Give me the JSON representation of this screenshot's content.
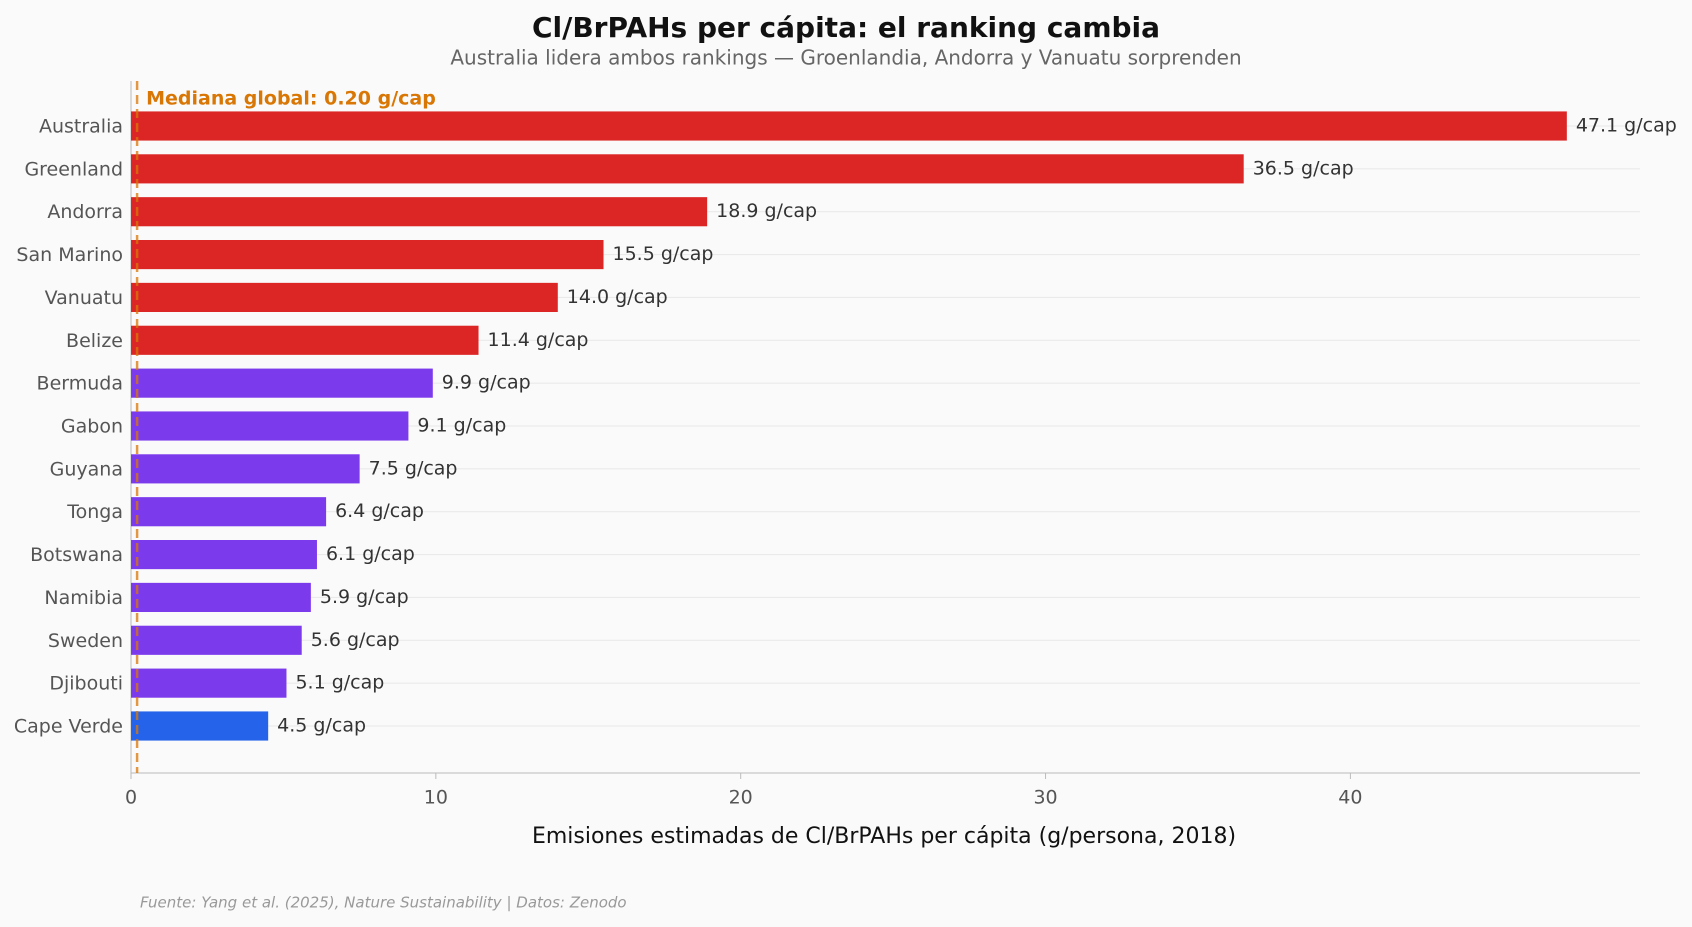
{
  "chart_data": {
    "type": "barh",
    "title": "Cl/BrPAHs per cápita: el ranking cambia",
    "subtitle": "Australia lidera ambos rankings — Groenlandia, Andorra y Vanuatu sorprenden",
    "x_label": "Emisiones estimadas de Cl/BrPAHs per cápita (g/persona, 2018)",
    "source": "Fuente: Yang et al. (2025), Nature Sustainability | Datos: Zenodo",
    "categories": [
      "Australia",
      "Greenland",
      "Andorra",
      "San Marino",
      "Vanuatu",
      "Belize",
      "Bermuda",
      "Gabon",
      "Guyana",
      "Tonga",
      "Botswana",
      "Namibia",
      "Sweden",
      "Djibouti",
      "Cape Verde"
    ],
    "values": [
      47.1,
      36.5,
      18.9,
      15.5,
      14.0,
      11.4,
      9.9,
      9.1,
      7.5,
      6.4,
      6.1,
      5.9,
      5.6,
      5.1,
      4.5
    ],
    "value_labels": [
      "47.1 g/cap",
      "36.5 g/cap",
      "18.9 g/cap",
      "15.5 g/cap",
      "14.0 g/cap",
      "11.4 g/cap",
      "9.9 g/cap",
      "9.1 g/cap",
      "7.5 g/cap",
      "6.4 g/cap",
      "6.1 g/cap",
      "5.9 g/cap",
      "5.6 g/cap",
      "5.1 g/cap",
      "4.5 g/cap"
    ],
    "colors": [
      "#dc2626",
      "#dc2626",
      "#dc2626",
      "#dc2626",
      "#dc2626",
      "#dc2626",
      "#7c3aed",
      "#7c3aed",
      "#7c3aed",
      "#7c3aed",
      "#7c3aed",
      "#7c3aed",
      "#7c3aed",
      "#7c3aed",
      "#2563eb"
    ],
    "reference_line": {
      "value": 0.2,
      "label": "Mediana global: 0.20 g/cap",
      "color": "#d97706"
    },
    "xlim": [
      0,
      49.5
    ],
    "xticks": [
      0,
      10,
      20,
      30,
      40
    ],
    "grid": true
  }
}
